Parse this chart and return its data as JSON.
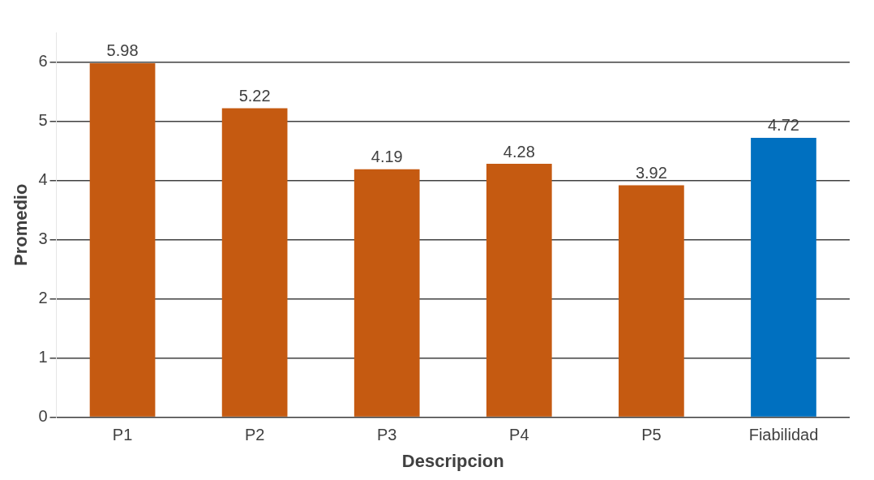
{
  "chart_data": {
    "type": "bar",
    "xlabel": "Descripcion",
    "ylabel": "Promedio",
    "categories": [
      "P1",
      "P2",
      "P3",
      "P4",
      "P5",
      "Fiabilidad"
    ],
    "values": [
      5.98,
      5.22,
      4.19,
      4.28,
      3.92,
      4.72
    ],
    "colors": [
      "#c55a11",
      "#c55a11",
      "#c55a11",
      "#c55a11",
      "#c55a11",
      "#0070c0"
    ],
    "ylim": [
      0,
      6.5
    ],
    "yticks": [
      0,
      1,
      2,
      3,
      4,
      5,
      6
    ],
    "grid": "y",
    "data_labels": true
  }
}
